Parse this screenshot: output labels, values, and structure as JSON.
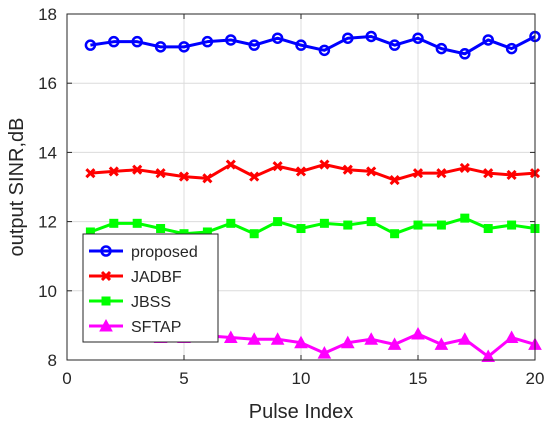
{
  "chart_data": {
    "type": "line",
    "xlabel": "Pulse Index",
    "ylabel": "output SINR,dB",
    "xlim": [
      0,
      20
    ],
    "ylim": [
      8,
      18
    ],
    "xticks": [
      0,
      5,
      10,
      15,
      20
    ],
    "yticks": [
      8,
      10,
      12,
      14,
      16,
      18
    ],
    "grid": true,
    "legend_position": "bottom-left",
    "x": [
      1,
      2,
      3,
      4,
      5,
      6,
      7,
      8,
      9,
      10,
      11,
      12,
      13,
      14,
      15,
      16,
      17,
      18,
      19,
      20
    ],
    "series": [
      {
        "name": "proposed",
        "color": "#0000ff",
        "marker": "circle",
        "values": [
          17.1,
          17.2,
          17.2,
          17.05,
          17.05,
          17.2,
          17.25,
          17.1,
          17.3,
          17.1,
          16.95,
          17.3,
          17.35,
          17.1,
          17.3,
          17.0,
          16.85,
          17.25,
          17.0,
          17.35
        ]
      },
      {
        "name": "JADBF",
        "color": "#ff0000",
        "marker": "x",
        "values": [
          13.4,
          13.45,
          13.5,
          13.4,
          13.3,
          13.25,
          13.65,
          13.3,
          13.6,
          13.45,
          13.65,
          13.5,
          13.45,
          13.2,
          13.4,
          13.4,
          13.55,
          13.4,
          13.35,
          13.4
        ]
      },
      {
        "name": "JBSS",
        "color": "#00ff00",
        "marker": "square",
        "values": [
          11.7,
          11.95,
          11.95,
          11.8,
          11.65,
          11.7,
          11.95,
          11.65,
          12.0,
          11.8,
          11.95,
          11.9,
          12.0,
          11.65,
          11.9,
          11.9,
          12.1,
          11.8,
          11.9,
          11.8
        ]
      },
      {
        "name": "SFTAP",
        "color": "#ff00ff",
        "marker": "triangle",
        "values": [
          8.7,
          8.7,
          8.7,
          8.65,
          8.65,
          8.7,
          8.65,
          8.6,
          8.6,
          8.5,
          8.2,
          8.5,
          8.6,
          8.45,
          8.75,
          8.45,
          8.6,
          8.1,
          8.65,
          8.45
        ]
      }
    ]
  }
}
